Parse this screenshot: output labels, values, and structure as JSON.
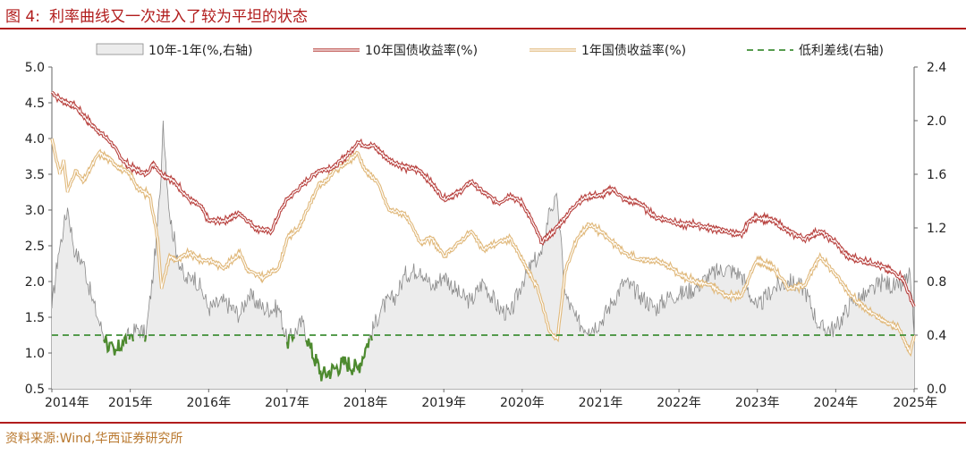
{
  "figure": {
    "number": "图 4:",
    "title": "利率曲线又一次进入了较为平坦的状态",
    "source": "资料来源:Wind,华西证券研究所"
  },
  "colors": {
    "accent": "#b11c1c",
    "spread_fill": "#ececec",
    "spread_line": "#8a8a8a",
    "y10": "#b8423f",
    "y1": "#e0b87a",
    "low": "#4d8a2f",
    "baseline": "#3f8f35"
  },
  "chart_data": {
    "type": "line",
    "legend": [
      "10年-1年(%,右轴)",
      "10年国债收益率(%)",
      "1年国债收益率(%)",
      "低利差线(右轴)"
    ],
    "x_ticks": [
      "2014年",
      "2015年",
      "2016年",
      "2017年",
      "2018年",
      "2019年",
      "2020年",
      "2021年",
      "2022年",
      "2023年",
      "2024年",
      "2025年"
    ],
    "y_left": {
      "ticks": [
        "0.5",
        "1.0",
        "1.5",
        "2.0",
        "2.5",
        "3.0",
        "3.5",
        "4.0",
        "4.5",
        "5.0"
      ],
      "ylim": [
        0.5,
        5.0
      ]
    },
    "y_right": {
      "ticks": [
        "0.0",
        "0.4",
        "0.8",
        "1.2",
        "1.6",
        "2.0",
        "2.4"
      ],
      "ylim": [
        0.0,
        2.4
      ]
    },
    "low_spread_line": 0.4,
    "series": [
      {
        "name": "10年国债收益率(%)",
        "axis": "left",
        "points": [
          [
            2014.0,
            4.65
          ],
          [
            2014.1,
            4.55
          ],
          [
            2014.3,
            4.45
          ],
          [
            2014.5,
            4.2
          ],
          [
            2014.6,
            4.1
          ],
          [
            2014.75,
            3.95
          ],
          [
            2014.9,
            3.7
          ],
          [
            2015.0,
            3.6
          ],
          [
            2015.1,
            3.55
          ],
          [
            2015.2,
            3.5
          ],
          [
            2015.3,
            3.65
          ],
          [
            2015.4,
            3.5
          ],
          [
            2015.5,
            3.45
          ],
          [
            2015.6,
            3.35
          ],
          [
            2015.75,
            3.15
          ],
          [
            2015.9,
            3.05
          ],
          [
            2016.0,
            2.85
          ],
          [
            2016.2,
            2.85
          ],
          [
            2016.4,
            2.95
          ],
          [
            2016.5,
            2.85
          ],
          [
            2016.6,
            2.75
          ],
          [
            2016.8,
            2.7
          ],
          [
            2016.9,
            2.95
          ],
          [
            2017.0,
            3.15
          ],
          [
            2017.2,
            3.35
          ],
          [
            2017.4,
            3.55
          ],
          [
            2017.6,
            3.6
          ],
          [
            2017.8,
            3.8
          ],
          [
            2017.9,
            3.95
          ],
          [
            2018.0,
            3.9
          ],
          [
            2018.1,
            3.9
          ],
          [
            2018.3,
            3.7
          ],
          [
            2018.5,
            3.6
          ],
          [
            2018.7,
            3.55
          ],
          [
            2018.9,
            3.3
          ],
          [
            2019.0,
            3.15
          ],
          [
            2019.2,
            3.25
          ],
          [
            2019.35,
            3.4
          ],
          [
            2019.5,
            3.25
          ],
          [
            2019.7,
            3.1
          ],
          [
            2019.85,
            3.2
          ],
          [
            2020.0,
            3.1
          ],
          [
            2020.1,
            2.9
          ],
          [
            2020.25,
            2.55
          ],
          [
            2020.4,
            2.7
          ],
          [
            2020.55,
            2.9
          ],
          [
            2020.7,
            3.1
          ],
          [
            2020.85,
            3.2
          ],
          [
            2021.0,
            3.2
          ],
          [
            2021.15,
            3.3
          ],
          [
            2021.3,
            3.15
          ],
          [
            2021.5,
            3.1
          ],
          [
            2021.7,
            2.9
          ],
          [
            2021.9,
            2.85
          ],
          [
            2022.0,
            2.8
          ],
          [
            2022.2,
            2.8
          ],
          [
            2022.4,
            2.75
          ],
          [
            2022.6,
            2.7
          ],
          [
            2022.8,
            2.65
          ],
          [
            2022.9,
            2.85
          ],
          [
            2023.0,
            2.9
          ],
          [
            2023.2,
            2.85
          ],
          [
            2023.4,
            2.7
          ],
          [
            2023.6,
            2.6
          ],
          [
            2023.8,
            2.7
          ],
          [
            2024.0,
            2.55
          ],
          [
            2024.15,
            2.35
          ],
          [
            2024.3,
            2.3
          ],
          [
            2024.5,
            2.25
          ],
          [
            2024.7,
            2.15
          ],
          [
            2024.85,
            2.05
          ],
          [
            2025.0,
            1.65
          ]
        ]
      },
      {
        "name": "1年国债收益率(%)",
        "axis": "left",
        "points": [
          [
            2014.0,
            4.0
          ],
          [
            2014.1,
            3.5
          ],
          [
            2014.15,
            3.7
          ],
          [
            2014.2,
            3.25
          ],
          [
            2014.3,
            3.55
          ],
          [
            2014.4,
            3.4
          ],
          [
            2014.5,
            3.6
          ],
          [
            2014.6,
            3.8
          ],
          [
            2014.75,
            3.7
          ],
          [
            2014.85,
            3.6
          ],
          [
            2015.0,
            3.5
          ],
          [
            2015.1,
            3.3
          ],
          [
            2015.25,
            3.2
          ],
          [
            2015.35,
            2.6
          ],
          [
            2015.4,
            1.9
          ],
          [
            2015.5,
            2.35
          ],
          [
            2015.6,
            2.3
          ],
          [
            2015.75,
            2.4
          ],
          [
            2015.9,
            2.3
          ],
          [
            2016.0,
            2.3
          ],
          [
            2016.2,
            2.2
          ],
          [
            2016.4,
            2.4
          ],
          [
            2016.5,
            2.15
          ],
          [
            2016.7,
            2.05
          ],
          [
            2016.9,
            2.2
          ],
          [
            2017.0,
            2.6
          ],
          [
            2017.15,
            2.75
          ],
          [
            2017.3,
            3.1
          ],
          [
            2017.4,
            3.35
          ],
          [
            2017.5,
            3.4
          ],
          [
            2017.6,
            3.55
          ],
          [
            2017.75,
            3.65
          ],
          [
            2017.9,
            3.8
          ],
          [
            2018.0,
            3.55
          ],
          [
            2018.15,
            3.4
          ],
          [
            2018.3,
            3.0
          ],
          [
            2018.5,
            2.95
          ],
          [
            2018.7,
            2.55
          ],
          [
            2018.85,
            2.6
          ],
          [
            2019.0,
            2.35
          ],
          [
            2019.2,
            2.55
          ],
          [
            2019.35,
            2.7
          ],
          [
            2019.5,
            2.45
          ],
          [
            2019.7,
            2.55
          ],
          [
            2019.85,
            2.6
          ],
          [
            2020.0,
            2.3
          ],
          [
            2020.2,
            1.9
          ],
          [
            2020.35,
            1.3
          ],
          [
            2020.45,
            1.2
          ],
          [
            2020.55,
            2.15
          ],
          [
            2020.7,
            2.6
          ],
          [
            2020.85,
            2.8
          ],
          [
            2021.0,
            2.7
          ],
          [
            2021.15,
            2.55
          ],
          [
            2021.3,
            2.4
          ],
          [
            2021.5,
            2.3
          ],
          [
            2021.7,
            2.3
          ],
          [
            2021.9,
            2.2
          ],
          [
            2022.0,
            2.1
          ],
          [
            2022.2,
            2.0
          ],
          [
            2022.4,
            1.95
          ],
          [
            2022.6,
            1.8
          ],
          [
            2022.8,
            1.8
          ],
          [
            2022.95,
            2.2
          ],
          [
            2023.0,
            2.3
          ],
          [
            2023.2,
            2.2
          ],
          [
            2023.4,
            1.9
          ],
          [
            2023.6,
            1.95
          ],
          [
            2023.8,
            2.35
          ],
          [
            2024.0,
            2.1
          ],
          [
            2024.2,
            1.8
          ],
          [
            2024.4,
            1.6
          ],
          [
            2024.6,
            1.45
          ],
          [
            2024.8,
            1.35
          ],
          [
            2024.95,
            1.0
          ],
          [
            2025.0,
            1.25
          ]
        ]
      },
      {
        "name": "10年-1年(%,右轴)",
        "axis": "right",
        "points": [
          [
            2014.0,
            0.6
          ],
          [
            2014.08,
            1.0
          ],
          [
            2014.15,
            1.2
          ],
          [
            2014.2,
            1.35
          ],
          [
            2014.3,
            1.0
          ],
          [
            2014.4,
            0.95
          ],
          [
            2014.5,
            0.7
          ],
          [
            2014.6,
            0.5
          ],
          [
            2014.7,
            0.35
          ],
          [
            2014.8,
            0.25
          ],
          [
            2014.9,
            0.35
          ],
          [
            2015.0,
            0.4
          ],
          [
            2015.1,
            0.45
          ],
          [
            2015.2,
            0.4
          ],
          [
            2015.3,
            0.9
          ],
          [
            2015.38,
            1.45
          ],
          [
            2015.42,
            2.0
          ],
          [
            2015.5,
            1.3
          ],
          [
            2015.6,
            1.0
          ],
          [
            2015.7,
            0.8
          ],
          [
            2015.8,
            0.85
          ],
          [
            2015.9,
            0.75
          ],
          [
            2016.0,
            0.6
          ],
          [
            2016.2,
            0.65
          ],
          [
            2016.4,
            0.55
          ],
          [
            2016.5,
            0.7
          ],
          [
            2016.7,
            0.6
          ],
          [
            2016.9,
            0.6
          ],
          [
            2017.0,
            0.35
          ],
          [
            2017.2,
            0.5
          ],
          [
            2017.3,
            0.3
          ],
          [
            2017.45,
            0.1
          ],
          [
            2017.6,
            0.15
          ],
          [
            2017.75,
            0.2
          ],
          [
            2017.9,
            0.15
          ],
          [
            2018.0,
            0.3
          ],
          [
            2018.2,
            0.6
          ],
          [
            2018.4,
            0.7
          ],
          [
            2018.5,
            0.85
          ],
          [
            2018.7,
            0.9
          ],
          [
            2018.85,
            0.75
          ],
          [
            2019.0,
            0.85
          ],
          [
            2019.2,
            0.7
          ],
          [
            2019.35,
            0.65
          ],
          [
            2019.5,
            0.8
          ],
          [
            2019.7,
            0.6
          ],
          [
            2019.85,
            0.55
          ],
          [
            2020.0,
            0.8
          ],
          [
            2020.15,
            0.95
          ],
          [
            2020.25,
            1.0
          ],
          [
            2020.35,
            1.35
          ],
          [
            2020.45,
            1.4
          ],
          [
            2020.55,
            0.7
          ],
          [
            2020.7,
            0.5
          ],
          [
            2020.85,
            0.45
          ],
          [
            2021.0,
            0.5
          ],
          [
            2021.15,
            0.65
          ],
          [
            2021.3,
            0.8
          ],
          [
            2021.5,
            0.7
          ],
          [
            2021.7,
            0.6
          ],
          [
            2021.9,
            0.7
          ],
          [
            2022.0,
            0.7
          ],
          [
            2022.2,
            0.75
          ],
          [
            2022.4,
            0.85
          ],
          [
            2022.6,
            0.9
          ],
          [
            2022.8,
            0.85
          ],
          [
            2022.95,
            0.65
          ],
          [
            2023.0,
            0.6
          ],
          [
            2023.2,
            0.75
          ],
          [
            2023.4,
            0.8
          ],
          [
            2023.6,
            0.75
          ],
          [
            2023.8,
            0.45
          ],
          [
            2024.0,
            0.45
          ],
          [
            2024.2,
            0.65
          ],
          [
            2024.4,
            0.7
          ],
          [
            2024.6,
            0.8
          ],
          [
            2024.8,
            0.75
          ],
          [
            2024.95,
            0.85
          ],
          [
            2025.0,
            0.4
          ]
        ]
      },
      {
        "name": "低利差线(右轴)",
        "axis": "right",
        "points": [
          [
            2014.0,
            0.4
          ],
          [
            2025.0,
            0.4
          ]
        ]
      }
    ]
  }
}
